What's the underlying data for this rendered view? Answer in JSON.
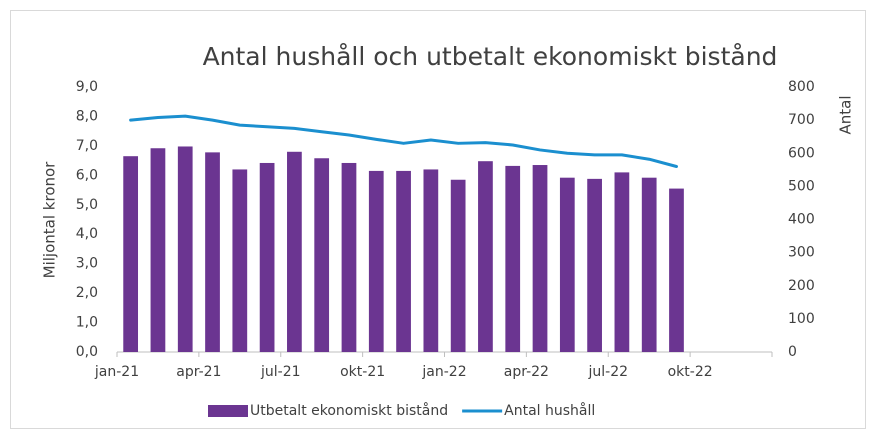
{
  "chart_data": {
    "type": "bar",
    "title": "Antal hushåll och utbetalt ekonomiskt bistånd",
    "y_label": "Miljontal kronor",
    "y2_label": "Antal",
    "categories": [
      "jan-21",
      null,
      null,
      "apr-21",
      null,
      null,
      "jul-21",
      null,
      null,
      "okt-21",
      null,
      null,
      "jan-22",
      null,
      null,
      "apr-22",
      null,
      null,
      "jul-22",
      null,
      null,
      "okt-22",
      null,
      null
    ],
    "series": [
      {
        "name": "Utbetalt ekonomiskt bistånd",
        "type": "bar",
        "color": "#6b3591",
        "axis": "y",
        "values": [
          6.65,
          6.92,
          6.98,
          6.78,
          6.2,
          6.42,
          6.8,
          6.58,
          6.42,
          6.15,
          6.15,
          6.2,
          5.85,
          6.48,
          6.32,
          6.35,
          5.92,
          5.88,
          6.1,
          5.92,
          5.55,
          null,
          null,
          null
        ]
      },
      {
        "name": "Antal hushåll",
        "type": "line",
        "color": "#1b8fcf",
        "axis": "y2",
        "values": [
          700,
          708,
          712,
          700,
          685,
          680,
          675,
          665,
          655,
          642,
          630,
          640,
          630,
          632,
          625,
          610,
          600,
          595,
          595,
          582,
          560,
          null,
          null,
          null
        ]
      }
    ],
    "ylim": [
      0,
      9
    ],
    "yticks": [
      {
        "value": 0,
        "label": "0,0"
      },
      {
        "value": 1,
        "label": "1,0"
      },
      {
        "value": 2,
        "label": "2,0"
      },
      {
        "value": 3,
        "label": "3,0"
      },
      {
        "value": 4,
        "label": "4,0"
      },
      {
        "value": 5,
        "label": "5,0"
      },
      {
        "value": 6,
        "label": "6,0"
      },
      {
        "value": 7,
        "label": "7,0"
      },
      {
        "value": 8,
        "label": "8,0"
      },
      {
        "value": 9,
        "label": "9,0"
      }
    ],
    "y2lim": [
      0,
      800
    ],
    "y2ticks": [
      0,
      100,
      200,
      300,
      400,
      500,
      600,
      700,
      800
    ],
    "legend": "bottom"
  }
}
